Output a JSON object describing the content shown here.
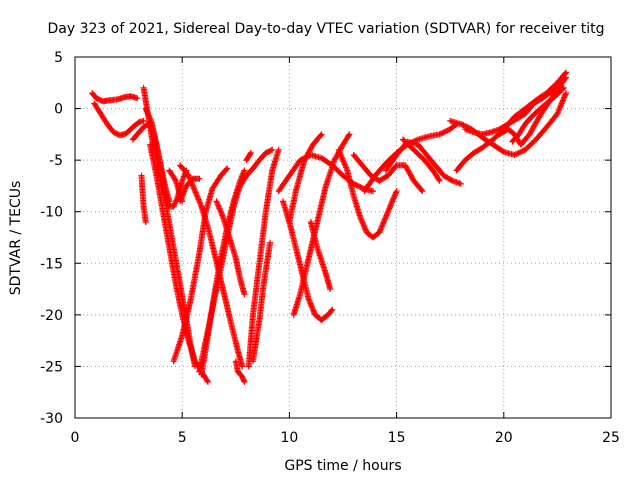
{
  "chart_data": {
    "type": "scatter",
    "title": "Day 323 of 2021, Sidereal Day-to-day VTEC variation (SDTVAR) for receiver titg",
    "xlabel": "GPS time / hours",
    "ylabel": "SDTVAR / TECUs",
    "xlim": [
      0,
      25
    ],
    "ylim": [
      -30,
      5
    ],
    "xticks": [
      0,
      5,
      10,
      15,
      20,
      25
    ],
    "yticks": [
      -30,
      -25,
      -20,
      -15,
      -10,
      -5,
      0,
      5
    ],
    "xtick_labels": [
      "0",
      "5",
      "10",
      "15",
      "20",
      "25"
    ],
    "ytick_labels": [
      "-30",
      "-25",
      "-20",
      "-15",
      "-10",
      "-5",
      "0",
      "5"
    ],
    "grid": true,
    "marker": "plus",
    "color": "#ff0000",
    "series": [
      {
        "values": [
          [
            0.8,
            1.5
          ],
          [
            1.0,
            1.0
          ],
          [
            1.3,
            0.7
          ],
          [
            1.6,
            0.8
          ],
          [
            2.0,
            0.9
          ],
          [
            2.3,
            1.1
          ],
          [
            2.6,
            1.2
          ],
          [
            2.9,
            1.0
          ]
        ]
      },
      {
        "values": [
          [
            0.9,
            0.5
          ],
          [
            1.2,
            -0.5
          ],
          [
            1.5,
            -1.5
          ],
          [
            1.8,
            -2.3
          ],
          [
            2.1,
            -2.6
          ],
          [
            2.4,
            -2.4
          ],
          [
            2.7,
            -1.8
          ],
          [
            3.0,
            -1.3
          ],
          [
            3.2,
            -1.2
          ]
        ]
      },
      {
        "values": [
          [
            2.7,
            -3.0
          ],
          [
            2.9,
            -2.5
          ],
          [
            3.2,
            -1.8
          ],
          [
            3.4,
            -1.5
          ],
          [
            3.6,
            -2.0
          ],
          [
            3.8,
            -3.5
          ],
          [
            4.0,
            -5.5
          ],
          [
            4.2,
            -7.5
          ],
          [
            4.4,
            -9.0
          ]
        ]
      },
      {
        "values": [
          [
            3.1,
            -6.5
          ],
          [
            3.15,
            -8.0
          ],
          [
            3.2,
            -9.5
          ],
          [
            3.3,
            -11.0
          ]
        ]
      },
      {
        "values": [
          [
            3.2,
            2.0
          ],
          [
            3.4,
            -0.5
          ],
          [
            3.6,
            -3.0
          ],
          [
            3.8,
            -5.0
          ],
          [
            4.0,
            -7.0
          ],
          [
            4.2,
            -8.5
          ],
          [
            4.4,
            -9.5
          ],
          [
            4.6,
            -9.5
          ],
          [
            4.8,
            -8.5
          ],
          [
            5.0,
            -7.0
          ],
          [
            5.2,
            -6.0
          ]
        ]
      },
      {
        "values": [
          [
            3.3,
            0.0
          ],
          [
            3.6,
            -1.5
          ],
          [
            3.9,
            -4.5
          ],
          [
            4.1,
            -7.0
          ],
          [
            4.3,
            -10.0
          ],
          [
            4.6,
            -13.5
          ],
          [
            4.9,
            -17.0
          ],
          [
            5.2,
            -20.5
          ],
          [
            5.4,
            -23.0
          ],
          [
            5.6,
            -25.0
          ]
        ]
      },
      {
        "values": [
          [
            3.5,
            -3.5
          ],
          [
            3.8,
            -6.5
          ],
          [
            4.1,
            -10.0
          ],
          [
            4.4,
            -13.5
          ],
          [
            4.7,
            -17.0
          ],
          [
            5.0,
            -20.0
          ],
          [
            5.3,
            -22.5
          ],
          [
            5.6,
            -24.5
          ],
          [
            5.9,
            -25.5
          ],
          [
            6.2,
            -26.5
          ]
        ]
      },
      {
        "values": [
          [
            4.4,
            -6.0
          ],
          [
            4.7,
            -7.0
          ],
          [
            5.0,
            -9.0
          ]
        ]
      },
      {
        "values": [
          [
            4.6,
            -24.5
          ],
          [
            5.0,
            -22.0
          ],
          [
            5.4,
            -18.5
          ],
          [
            5.8,
            -14.0
          ],
          [
            6.1,
            -10.0
          ],
          [
            6.4,
            -7.8
          ],
          [
            6.8,
            -6.5
          ],
          [
            7.1,
            -5.8
          ]
        ]
      },
      {
        "values": [
          [
            4.9,
            -5.5
          ],
          [
            5.3,
            -6.5
          ],
          [
            5.6,
            -8.0
          ],
          [
            5.9,
            -9.5
          ],
          [
            6.2,
            -11.5
          ],
          [
            6.5,
            -14.0
          ],
          [
            6.9,
            -17.5
          ],
          [
            7.3,
            -21.0
          ],
          [
            7.6,
            -23.5
          ],
          [
            7.8,
            -25.0
          ]
        ]
      },
      {
        "values": [
          [
            4.9,
            -9.0
          ],
          [
            5.2,
            -7.5
          ],
          [
            5.5,
            -6.8
          ],
          [
            5.8,
            -6.8
          ]
        ]
      },
      {
        "values": [
          [
            5.8,
            -25.5
          ],
          [
            6.2,
            -21.5
          ],
          [
            6.6,
            -17.5
          ],
          [
            7.0,
            -13.5
          ],
          [
            7.4,
            -9.5
          ],
          [
            7.7,
            -7.5
          ],
          [
            8.0,
            -6.5
          ],
          [
            8.3,
            -5.8
          ],
          [
            8.6,
            -5.0
          ],
          [
            8.9,
            -4.3
          ],
          [
            9.2,
            -4.0
          ]
        ]
      },
      {
        "values": [
          [
            5.9,
            -25.8
          ],
          [
            6.2,
            -22.0
          ],
          [
            6.5,
            -18.0
          ],
          [
            6.8,
            -14.5
          ],
          [
            7.1,
            -11.5
          ],
          [
            7.4,
            -9.0
          ],
          [
            7.7,
            -7.0
          ],
          [
            7.9,
            -6.0
          ]
        ]
      },
      {
        "values": [
          [
            6.6,
            -9.0
          ],
          [
            6.9,
            -10.5
          ],
          [
            7.2,
            -12.5
          ],
          [
            7.5,
            -14.5
          ],
          [
            7.7,
            -16.5
          ],
          [
            7.9,
            -18.0
          ]
        ]
      },
      {
        "values": [
          [
            7.5,
            -24.5
          ],
          [
            7.6,
            -25.5
          ],
          [
            7.8,
            -26.0
          ],
          [
            7.9,
            -26.5
          ]
        ]
      },
      {
        "values": [
          [
            8.1,
            -25.0
          ],
          [
            8.3,
            -20.0
          ],
          [
            8.6,
            -15.0
          ],
          [
            8.9,
            -10.0
          ],
          [
            9.2,
            -6.0
          ],
          [
            9.5,
            -4.0
          ]
        ]
      },
      {
        "values": [
          [
            8.3,
            -24.5
          ],
          [
            8.6,
            -20.5
          ],
          [
            8.8,
            -17.0
          ],
          [
            9.1,
            -13.0
          ]
        ]
      },
      {
        "values": [
          [
            8.0,
            -5.0
          ],
          [
            8.2,
            -4.3
          ]
        ]
      },
      {
        "values": [
          [
            9.5,
            -8.0
          ],
          [
            10.0,
            -6.5
          ],
          [
            10.5,
            -5.0
          ],
          [
            11.0,
            -4.5
          ],
          [
            11.5,
            -4.8
          ],
          [
            12.0,
            -5.5
          ],
          [
            12.5,
            -6.5
          ],
          [
            13.0,
            -7.3
          ],
          [
            13.5,
            -7.8
          ],
          [
            13.9,
            -8.0
          ]
        ]
      },
      {
        "values": [
          [
            9.7,
            -9.0
          ],
          [
            10.0,
            -11.0
          ],
          [
            10.3,
            -13.5
          ],
          [
            10.6,
            -16.0
          ],
          [
            10.9,
            -18.5
          ],
          [
            11.2,
            -20.0
          ],
          [
            11.5,
            -20.5
          ],
          [
            11.8,
            -20.0
          ],
          [
            12.0,
            -19.5
          ]
        ]
      },
      {
        "values": [
          [
            10.0,
            -11.0
          ],
          [
            10.3,
            -8.0
          ],
          [
            10.7,
            -5.0
          ],
          [
            11.1,
            -3.5
          ],
          [
            11.5,
            -2.5
          ]
        ]
      },
      {
        "values": [
          [
            10.2,
            -20.0
          ],
          [
            10.5,
            -18.0
          ],
          [
            10.9,
            -14.5
          ],
          [
            11.3,
            -11.0
          ],
          [
            11.7,
            -7.5
          ],
          [
            12.1,
            -5.0
          ],
          [
            12.5,
            -3.5
          ],
          [
            12.8,
            -2.5
          ]
        ]
      },
      {
        "values": [
          [
            11.0,
            -11.0
          ],
          [
            11.3,
            -13.5
          ],
          [
            11.7,
            -16.0
          ],
          [
            11.9,
            -17.5
          ]
        ]
      },
      {
        "values": [
          [
            12.3,
            -4.0
          ],
          [
            12.7,
            -6.0
          ],
          [
            13.0,
            -8.5
          ],
          [
            13.3,
            -10.5
          ],
          [
            13.6,
            -12.0
          ],
          [
            13.9,
            -12.5
          ],
          [
            14.2,
            -12.0
          ],
          [
            14.5,
            -10.5
          ],
          [
            14.8,
            -9.0
          ],
          [
            15.0,
            -8.0
          ]
        ]
      },
      {
        "values": [
          [
            13.0,
            -4.5
          ],
          [
            13.4,
            -5.5
          ],
          [
            13.8,
            -6.5
          ],
          [
            14.2,
            -7.0
          ],
          [
            14.6,
            -6.5
          ],
          [
            15.0,
            -5.5
          ],
          [
            15.4,
            -5.5
          ],
          [
            15.8,
            -7.0
          ],
          [
            16.2,
            -8.0
          ]
        ]
      },
      {
        "values": [
          [
            13.5,
            -8.0
          ],
          [
            14.0,
            -6.5
          ],
          [
            14.5,
            -5.3
          ],
          [
            15.0,
            -4.3
          ],
          [
            15.5,
            -3.5
          ],
          [
            16.0,
            -3.0
          ],
          [
            16.5,
            -2.7
          ],
          [
            17.0,
            -2.5
          ],
          [
            17.5,
            -2.0
          ],
          [
            17.8,
            -1.5
          ]
        ]
      },
      {
        "values": [
          [
            14.5,
            -6.0
          ],
          [
            15.0,
            -4.5
          ],
          [
            15.5,
            -3.2
          ],
          [
            16.0,
            -3.5
          ],
          [
            16.4,
            -4.5
          ],
          [
            16.8,
            -5.5
          ],
          [
            17.2,
            -6.5
          ],
          [
            17.6,
            -7.0
          ],
          [
            18.0,
            -7.3
          ]
        ]
      },
      {
        "values": [
          [
            15.3,
            -3.0
          ],
          [
            15.8,
            -4.0
          ],
          [
            16.3,
            -5.0
          ],
          [
            16.7,
            -6.0
          ],
          [
            17.0,
            -7.0
          ]
        ]
      },
      {
        "values": [
          [
            17.5,
            -1.2
          ],
          [
            18.0,
            -1.5
          ],
          [
            18.5,
            -2.0
          ],
          [
            19.0,
            -2.8
          ],
          [
            19.5,
            -3.5
          ],
          [
            20.0,
            -4.2
          ],
          [
            20.5,
            -4.5
          ],
          [
            21.0,
            -4.0
          ],
          [
            21.5,
            -3.0
          ],
          [
            22.0,
            -1.8
          ],
          [
            22.5,
            -0.5
          ],
          [
            22.9,
            1.5
          ]
        ]
      },
      {
        "values": [
          [
            17.8,
            -6.0
          ],
          [
            18.2,
            -5.0
          ],
          [
            18.6,
            -4.3
          ],
          [
            19.0,
            -3.8
          ],
          [
            19.5,
            -3.0
          ],
          [
            20.0,
            -2.0
          ],
          [
            20.5,
            -0.8
          ],
          [
            21.0,
            0.0
          ],
          [
            21.5,
            0.8
          ],
          [
            22.0,
            1.5
          ],
          [
            22.5,
            2.5
          ],
          [
            22.9,
            3.5
          ]
        ]
      },
      {
        "values": [
          [
            18.2,
            -2.0
          ],
          [
            18.6,
            -2.3
          ],
          [
            19.0,
            -2.5
          ],
          [
            19.4,
            -2.3
          ],
          [
            19.8,
            -2.0
          ],
          [
            20.2,
            -1.5
          ],
          [
            20.6,
            -1.0
          ],
          [
            21.0,
            -0.5
          ],
          [
            21.4,
            0.5
          ],
          [
            21.8,
            1.0
          ],
          [
            22.2,
            1.6
          ],
          [
            22.6,
            2.2
          ],
          [
            22.9,
            3.0
          ]
        ]
      },
      {
        "values": [
          [
            19.8,
            -2.5
          ],
          [
            20.2,
            -2.0
          ],
          [
            20.5,
            -2.5
          ],
          [
            20.8,
            -3.5
          ],
          [
            21.2,
            -2.5
          ],
          [
            21.6,
            -1.0
          ],
          [
            22.0,
            0.3
          ],
          [
            22.4,
            1.5
          ],
          [
            22.8,
            2.8
          ]
        ]
      },
      {
        "values": [
          [
            20.4,
            -3.2
          ],
          [
            20.7,
            -2.5
          ],
          [
            21.0,
            -1.5
          ],
          [
            21.3,
            -0.8
          ],
          [
            21.6,
            -0.2
          ],
          [
            22.0,
            0.5
          ],
          [
            22.4,
            1.2
          ],
          [
            22.8,
            2.0
          ]
        ]
      }
    ]
  }
}
